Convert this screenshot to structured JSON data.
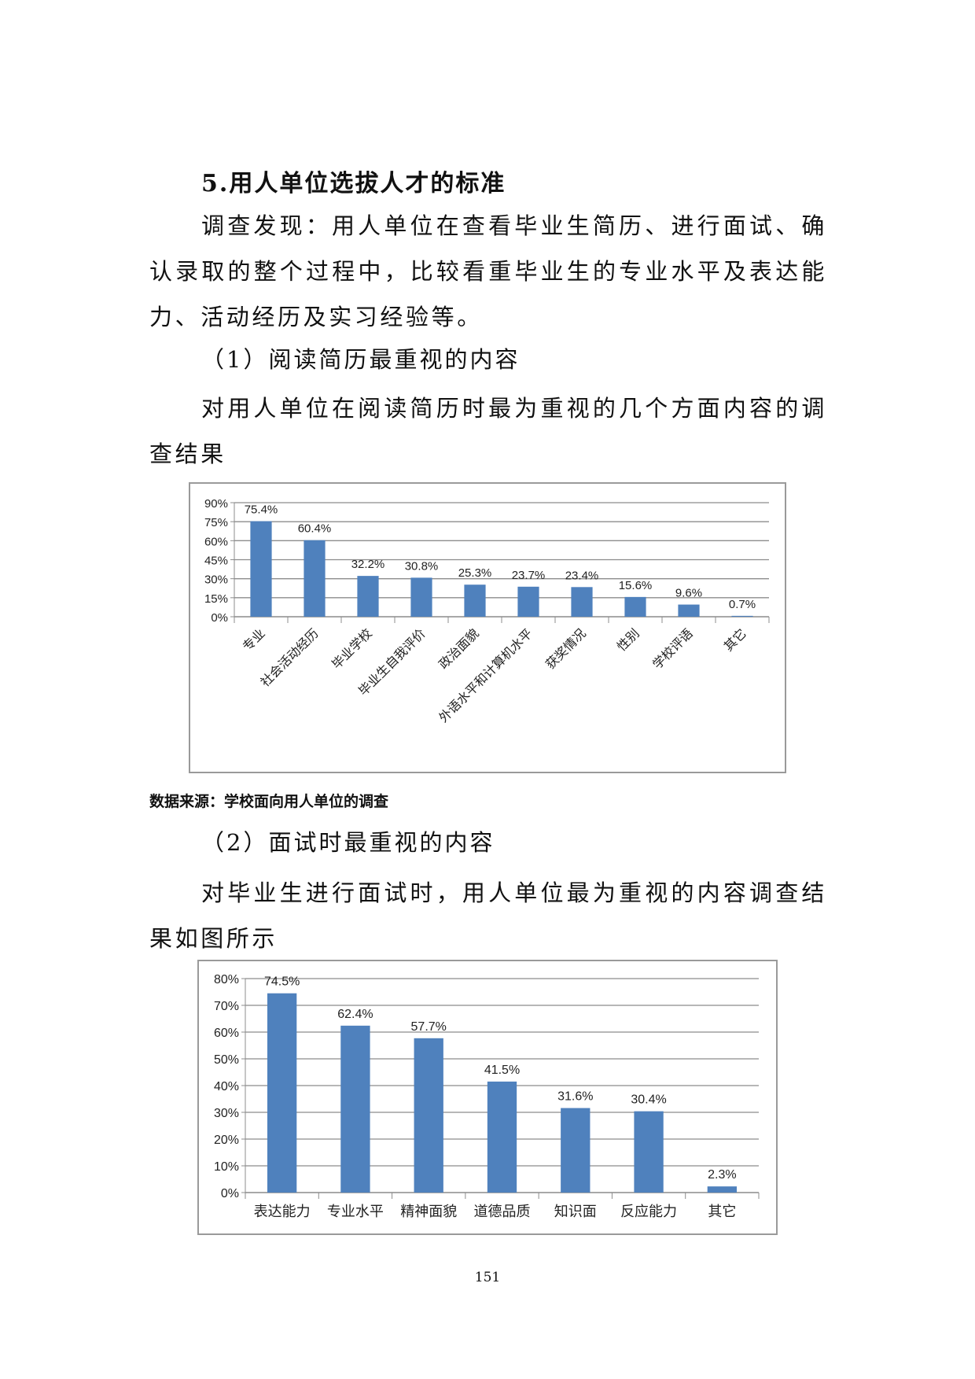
{
  "section": {
    "title": "5.用人单位选拔人才的标准",
    "intro": "调查发现：用人单位在查看毕业生简历、进行面试、确认录取的整个过程中，比较看重毕业生的专业水平及表达能力、活动经历及实习经验等。"
  },
  "part1": {
    "heading": "（1）阅读简历最重视的内容",
    "text": "对用人单位在阅读简历时最为重视的几个方面内容的调查结果",
    "source": "数据来源：学校面向用人单位的调查"
  },
  "part2": {
    "heading": "（2）面试时最重视的内容",
    "text": "对毕业生进行面试时，用人单位最为重视的内容调查结果如图所示"
  },
  "page_number": "151",
  "chart_data": [
    {
      "type": "bar",
      "categories": [
        "专业",
        "社会活动经历",
        "毕业学校",
        "毕业生自我评价",
        "政治面貌",
        "外语水平和计算机水平",
        "获奖情况",
        "性别",
        "学校评语",
        "其它"
      ],
      "values": [
        75.4,
        60.4,
        32.2,
        30.8,
        25.3,
        23.7,
        23.4,
        15.6,
        9.6,
        0.7
      ],
      "data_labels": [
        "75.4%",
        "60.4%",
        "32.2%",
        "30.8%",
        "25.3%",
        "23.7%",
        "23.4%",
        "15.6%",
        "9.6%",
        "0.7%"
      ],
      "yticks": [
        "0%",
        "15%",
        "30%",
        "45%",
        "60%",
        "75%",
        "90%"
      ],
      "ylim": [
        0,
        90
      ],
      "grid": true,
      "bar_color": "#4f81bd"
    },
    {
      "type": "bar",
      "categories": [
        "表达能力",
        "专业水平",
        "精神面貌",
        "道德品质",
        "知识面",
        "反应能力",
        "其它"
      ],
      "values": [
        74.5,
        62.4,
        57.7,
        41.5,
        31.6,
        30.4,
        2.3
      ],
      "data_labels": [
        "74.5%",
        "62.4%",
        "57.7%",
        "41.5%",
        "31.6%",
        "30.4%",
        "2.3%"
      ],
      "yticks": [
        "0%",
        "10%",
        "20%",
        "30%",
        "40%",
        "50%",
        "60%",
        "70%",
        "80%"
      ],
      "ylim": [
        0,
        80
      ],
      "grid": true,
      "bar_color": "#4f81bd"
    }
  ]
}
